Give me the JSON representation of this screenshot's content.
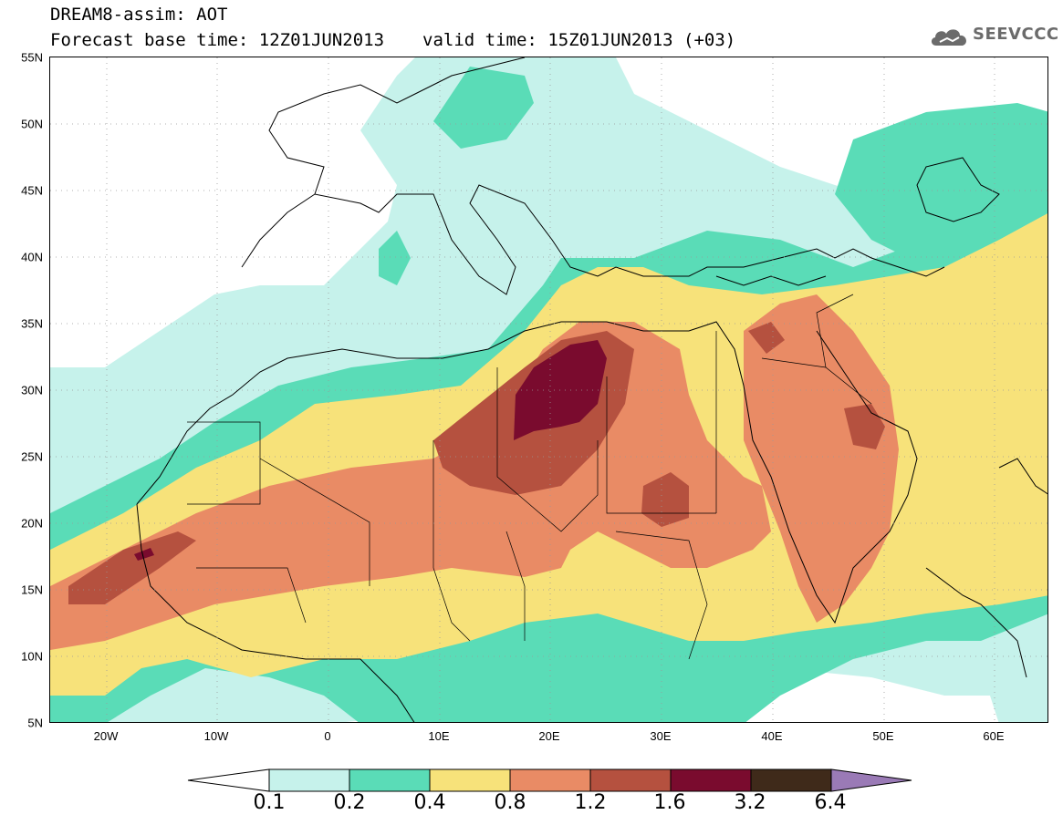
{
  "title": {
    "line1": "DREAM8-assim: AOT",
    "base_time": "Forecast base time: 12Z01JUN2013",
    "valid_time": "valid time: 15Z01JUN2013 (+03)"
  },
  "logo": {
    "text": "SEEVCCC",
    "icon": "cloud-icon"
  },
  "map": {
    "lat_labels": [
      "55N",
      "50N",
      "45N",
      "40N",
      "35N",
      "30N",
      "25N",
      "20N",
      "15N",
      "10N",
      "5N"
    ],
    "lon_labels": [
      "20W",
      "10W",
      "0",
      "10E",
      "20E",
      "30E",
      "40E",
      "50E",
      "60E"
    ]
  },
  "colorbar": {
    "labels": [
      "0.1",
      "0.2",
      "0.4",
      "0.8",
      "1.2",
      "1.6",
      "3.2",
      "6.4"
    ],
    "colors": [
      "#ffffff",
      "#c6f2eb",
      "#5adcb7",
      "#f7e27a",
      "#e98b65",
      "#b5513f",
      "#7a0b2e",
      "#3f2a1a",
      "#9a7ab6"
    ]
  }
}
